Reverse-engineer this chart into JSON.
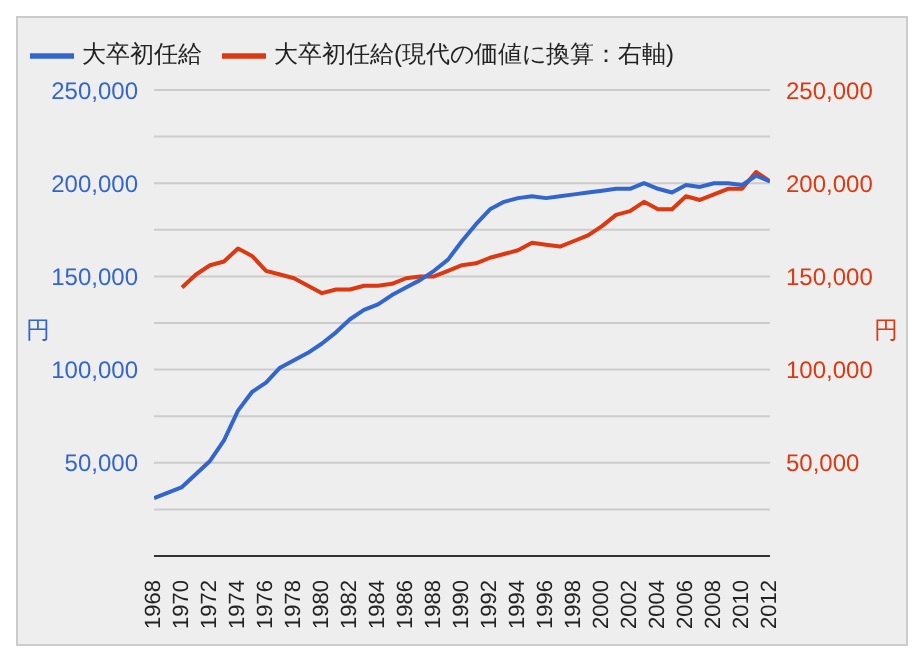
{
  "chart_data": {
    "type": "line",
    "ylabel": "円",
    "y2label": "円",
    "x": [
      1968,
      1969,
      1970,
      1971,
      1972,
      1973,
      1974,
      1975,
      1976,
      1977,
      1978,
      1979,
      1980,
      1981,
      1982,
      1983,
      1984,
      1985,
      1986,
      1987,
      1988,
      1989,
      1990,
      1991,
      1992,
      1993,
      1994,
      1995,
      1996,
      1997,
      1998,
      1999,
      2000,
      2001,
      2002,
      2003,
      2004,
      2005,
      2006,
      2007,
      2008,
      2009,
      2010,
      2011,
      2012
    ],
    "series": [
      {
        "name": "大卒初任給",
        "color": "#3366cc",
        "values": [
          31000,
          34000,
          37000,
          44000,
          51000,
          62000,
          78000,
          88000,
          93000,
          101000,
          105000,
          109000,
          114000,
          120000,
          127000,
          132000,
          135000,
          140000,
          144000,
          148000,
          153000,
          159000,
          169000,
          178000,
          186000,
          190000,
          192000,
          193000,
          192000,
          193000,
          194000,
          195000,
          196000,
          197000,
          197000,
          200000,
          197000,
          195000,
          199000,
          198000,
          200000,
          200000,
          199000,
          204000,
          201000
        ]
      },
      {
        "name": "大卒初任給(現代の価値に換算：右軸)",
        "color": "#dc3912",
        "axis": "y2",
        "values": [
          null,
          null,
          144000,
          151000,
          156000,
          158000,
          165000,
          161000,
          153000,
          151000,
          149000,
          145000,
          141000,
          143000,
          143000,
          145000,
          145000,
          146000,
          149000,
          150000,
          150000,
          153000,
          156000,
          157000,
          160000,
          162000,
          164000,
          168000,
          167000,
          166000,
          169000,
          172000,
          177000,
          183000,
          185000,
          190000,
          186000,
          186000,
          193000,
          191000,
          194000,
          197000,
          197000,
          206000,
          201000
        ]
      }
    ],
    "xlim": [
      1968,
      2012
    ],
    "xticks": [
      1968,
      1970,
      1972,
      1974,
      1976,
      1978,
      1980,
      1982,
      1984,
      1986,
      1988,
      1990,
      1992,
      1994,
      1996,
      1998,
      2000,
      2002,
      2004,
      2006,
      2008,
      2010,
      2012
    ],
    "ylim": [
      0,
      250000
    ],
    "yticks": [
      {
        "value": 0,
        "label": null
      },
      {
        "value": 25000,
        "label": null
      },
      {
        "value": 50000,
        "label": "50,000"
      },
      {
        "value": 75000,
        "label": null
      },
      {
        "value": 100000,
        "label": "100,000"
      },
      {
        "value": 125000,
        "label": null
      },
      {
        "value": 150000,
        "label": "150,000"
      },
      {
        "value": 175000,
        "label": null
      },
      {
        "value": 200000,
        "label": "200,000"
      },
      {
        "value": 225000,
        "label": null
      },
      {
        "value": 250000,
        "label": "250,000"
      }
    ],
    "y2lim": [
      0,
      250000
    ],
    "y2ticks": [
      {
        "value": 0,
        "label": null
      },
      {
        "value": 25000,
        "label": null
      },
      {
        "value": 50000,
        "label": "50,000"
      },
      {
        "value": 75000,
        "label": null
      },
      {
        "value": 100000,
        "label": "100,000"
      },
      {
        "value": 125000,
        "label": null
      },
      {
        "value": 150000,
        "label": "150,000"
      },
      {
        "value": 175000,
        "label": null
      },
      {
        "value": 200000,
        "label": "200,000"
      },
      {
        "value": 225000,
        "label": null
      },
      {
        "value": 250000,
        "label": "250,000"
      }
    ],
    "grid": "y",
    "legend": "top left",
    "marker": "none",
    "line_style": "solid"
  }
}
